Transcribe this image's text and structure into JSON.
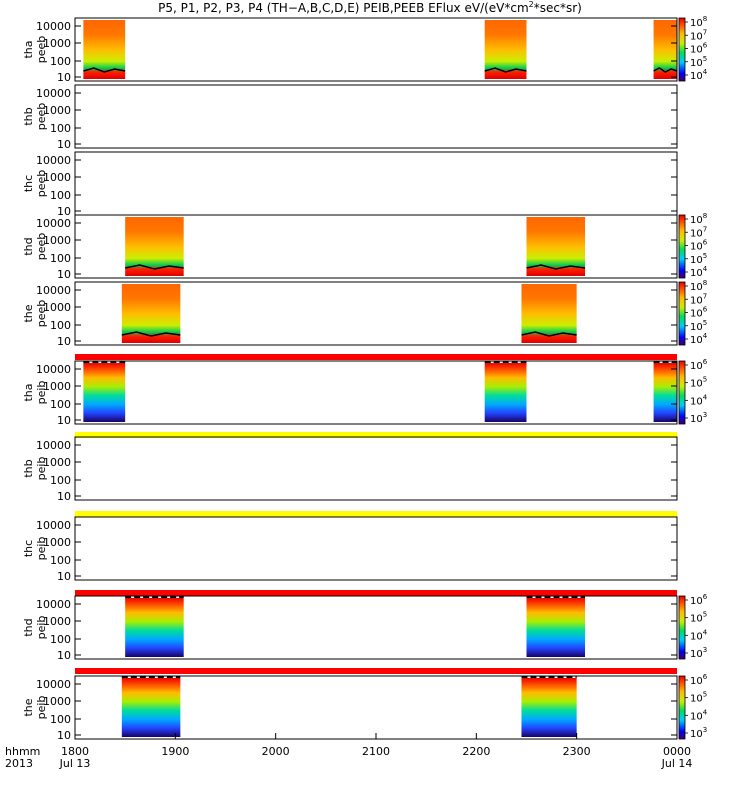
{
  "title_parts": [
    "P5, P1, P2, P3, P4 (TH−A,B,C,D,E) PEIB,PEEB EFlux eV/(eV*cm",
    "2",
    "*sec*sr)"
  ],
  "chart_data": {
    "type": "heatmap",
    "x_axis": {
      "ticks": [
        "1800",
        "1900",
        "2000",
        "2100",
        "2200",
        "2300",
        "0000"
      ],
      "row_label": "hhmm",
      "year_label": "2013",
      "date_start": "Jul 13",
      "date_end": "Jul 14"
    },
    "y_ticks": [
      "10000",
      "1000",
      "100",
      "10"
    ],
    "panels": [
      {
        "label1": "tha",
        "label2": "peeb",
        "colorbar": [
          "8",
          "7",
          "6",
          "5",
          "4"
        ],
        "blocks": [
          {
            "start": "18:05",
            "end": "18:30",
            "fill": "eflux-high"
          },
          {
            "start": "22:05",
            "end": "22:30",
            "fill": "eflux-high"
          },
          {
            "start": "23:46",
            "end": "24:00",
            "fill": "eflux-high"
          }
        ]
      },
      {
        "label1": "thb",
        "label2": "peeb",
        "colorbar": null,
        "blocks": []
      },
      {
        "label1": "thc",
        "label2": "peeb",
        "colorbar": null,
        "blocks": []
      },
      {
        "label1": "thd",
        "label2": "peeb",
        "colorbar": [
          "8",
          "7",
          "6",
          "5",
          "4"
        ],
        "blocks": [
          {
            "start": "18:30",
            "end": "19:05",
            "fill": "eflux-high"
          },
          {
            "start": "22:30",
            "end": "23:05",
            "fill": "eflux-high"
          }
        ]
      },
      {
        "label1": "the",
        "label2": "peeb",
        "colorbar": [
          "8",
          "7",
          "6",
          "5",
          "4"
        ],
        "blocks": [
          {
            "start": "18:28",
            "end": "19:03",
            "fill": "eflux-high"
          },
          {
            "start": "22:27",
            "end": "23:00",
            "fill": "eflux-high"
          }
        ]
      },
      {
        "label1": "tha",
        "label2": "peib",
        "colorbar": [
          "6",
          "5",
          "4",
          "3"
        ],
        "blocks": [
          {
            "start": "18:05",
            "end": "18:30",
            "fill": "ion"
          },
          {
            "start": "22:05",
            "end": "22:30",
            "fill": "ion"
          },
          {
            "start": "23:46",
            "end": "24:00",
            "fill": "ion"
          }
        ]
      },
      {
        "label1": "thb",
        "label2": "peib",
        "colorbar": null,
        "blocks": []
      },
      {
        "label1": "thc",
        "label2": "peib",
        "colorbar": null,
        "blocks": []
      },
      {
        "label1": "thd",
        "label2": "peib",
        "colorbar": [
          "6",
          "5",
          "4",
          "3"
        ],
        "blocks": [
          {
            "start": "18:30",
            "end": "19:05",
            "fill": "ion"
          },
          {
            "start": "22:30",
            "end": "23:05",
            "fill": "ion"
          }
        ]
      },
      {
        "label1": "the",
        "label2": "peib",
        "colorbar": [
          "6",
          "5",
          "4",
          "3"
        ],
        "blocks": [
          {
            "start": "18:28",
            "end": "19:03",
            "fill": "ion"
          },
          {
            "start": "22:27",
            "end": "23:00",
            "fill": "ion"
          }
        ]
      }
    ],
    "status_bars": [
      {
        "after_panel": 5,
        "color": "#ff0000"
      },
      {
        "after_panel": 6,
        "color": "#ffff00"
      },
      {
        "after_panel": 7,
        "color": "#ffff00"
      },
      {
        "after_panel": 8,
        "color": "#ff0000"
      },
      {
        "after_panel": 9,
        "color": "#ff0000"
      }
    ],
    "colors": {
      "frame": "#000000",
      "background": "#ffffff"
    }
  }
}
